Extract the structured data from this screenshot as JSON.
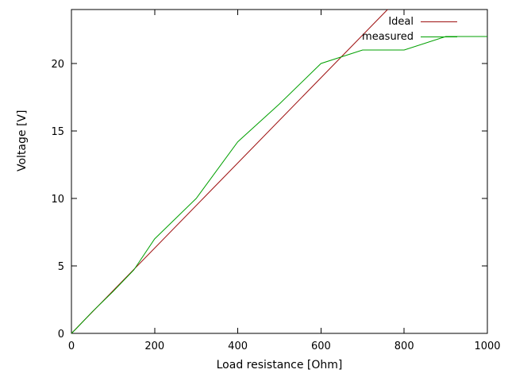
{
  "chart_data": {
    "type": "line",
    "title": "",
    "xlabel": "Load resistance [Ohm]",
    "ylabel": "Voltage [V]",
    "xlim": [
      0,
      1000
    ],
    "ylim": [
      0,
      24
    ],
    "xticks": [
      0,
      200,
      400,
      600,
      800,
      1000
    ],
    "yticks": [
      0,
      5,
      10,
      15,
      20
    ],
    "grid": false,
    "legend_position": "top-right-inside",
    "axis_color": "#000000",
    "series": [
      {
        "name": "Ideal",
        "color": "#9e1010",
        "x": [
          0,
          760
        ],
        "y": [
          0,
          24
        ]
      },
      {
        "name": "measured",
        "color": "#00a000",
        "x": [
          0,
          10,
          50,
          100,
          150,
          200,
          300,
          400,
          500,
          600,
          650,
          700,
          800,
          900,
          1000
        ],
        "y": [
          0,
          0.3,
          1.6,
          3.1,
          4.7,
          7,
          10,
          14.2,
          17,
          20,
          20.5,
          21,
          21,
          22,
          22
        ]
      }
    ]
  }
}
